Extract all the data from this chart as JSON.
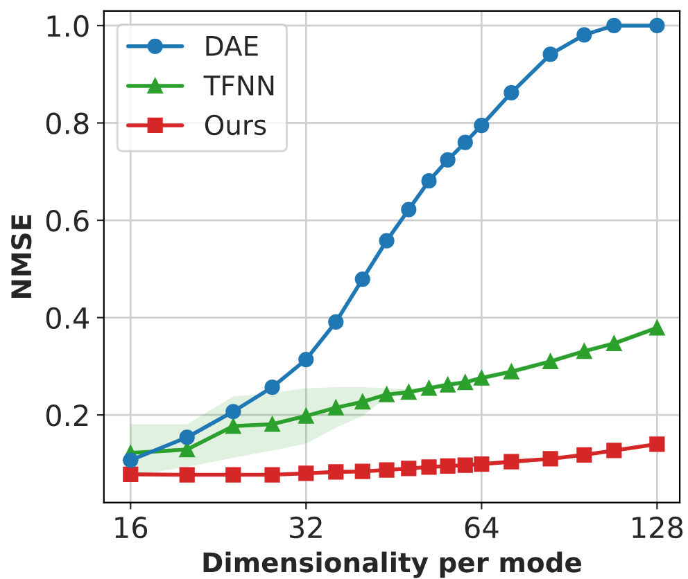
{
  "chart_data": {
    "type": "line",
    "xlabel": "Dimensionality per mode",
    "ylabel": "NMSE",
    "log": "x",
    "x": [
      16,
      20,
      24,
      28,
      32,
      36,
      40,
      44,
      48,
      52,
      56,
      60,
      64,
      72,
      84,
      96,
      108,
      128
    ],
    "series": [
      {
        "name": "DAE",
        "color": "#1f77b4",
        "marker": "circle",
        "values": [
          0.107,
          0.154,
          0.207,
          0.257,
          0.314,
          0.391,
          0.479,
          0.558,
          0.622,
          0.681,
          0.724,
          0.76,
          0.795,
          0.862,
          0.941,
          0.981,
          1.0,
          1.0
        ]
      },
      {
        "name": "TFNN",
        "color": "#2ca02c",
        "marker": "triangle",
        "values": [
          0.122,
          0.129,
          0.177,
          0.181,
          0.198,
          0.215,
          0.227,
          0.242,
          0.247,
          0.255,
          0.262,
          0.267,
          0.276,
          0.289,
          0.31,
          0.331,
          0.347,
          0.379
        ],
        "lower": [
          0.075,
          0.093,
          0.112,
          0.127,
          0.141,
          0.174,
          0.198,
          0.237,
          0.242,
          0.25,
          0.257,
          0.262,
          0.271,
          0.284,
          0.305,
          0.326,
          0.342,
          0.374
        ],
        "upper": [
          0.181,
          0.181,
          0.238,
          0.245,
          0.255,
          0.257,
          0.257,
          0.255,
          0.252,
          0.26,
          0.267,
          0.272,
          0.281,
          0.294,
          0.315,
          0.336,
          0.352,
          0.384
        ]
      },
      {
        "name": "Ours",
        "color": "#d62728",
        "marker": "square",
        "values": [
          0.078,
          0.077,
          0.077,
          0.077,
          0.08,
          0.083,
          0.084,
          0.087,
          0.09,
          0.093,
          0.095,
          0.097,
          0.099,
          0.104,
          0.11,
          0.118,
          0.127,
          0.14
        ]
      }
    ],
    "xlim": [
      14.4,
      140
    ],
    "xticks": [
      16,
      32,
      64,
      128
    ],
    "ylim": [
      0.02,
      1.03
    ],
    "yticks": [
      {
        "value": 0.2,
        "label": "0.2"
      },
      {
        "value": 0.4,
        "label": "0.4"
      },
      {
        "value": 0.6,
        "label": "0.6"
      },
      {
        "value": 0.8,
        "label": "0.8"
      },
      {
        "value": 1.0,
        "label": "1.0"
      }
    ],
    "grid": true,
    "legend": "top left",
    "line_style": "solid"
  }
}
